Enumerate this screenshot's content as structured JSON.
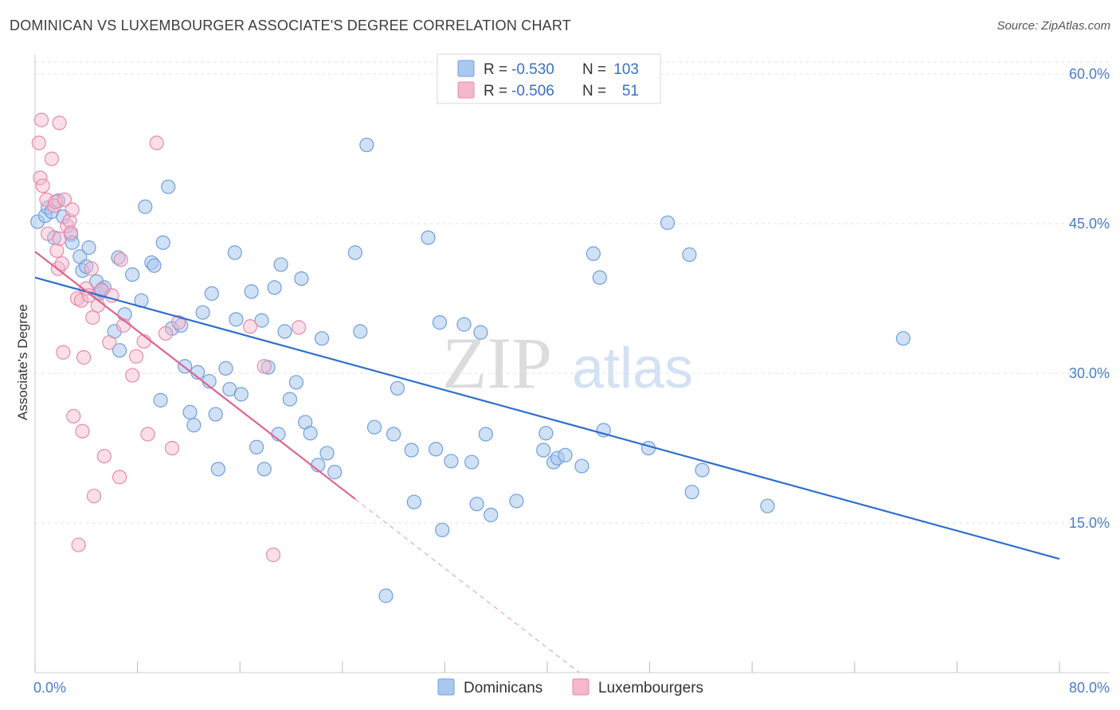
{
  "header": {
    "title": "DOMINICAN VS LUXEMBOURGER ASSOCIATE'S DEGREE CORRELATION CHART",
    "source": "Source: ZipAtlas.com"
  },
  "watermark": {
    "zip": "ZIP",
    "atlas": "atlas"
  },
  "legend_top": {
    "rows": [
      {
        "r_label": "R =",
        "r_value": "-0.530",
        "n_label": "N =",
        "n_value": "103",
        "color": "#a9c8ef"
      },
      {
        "r_label": "R =",
        "r_value": "-0.506",
        "n_label": "N =",
        "n_value": "51",
        "color": "#f5b8cb"
      }
    ]
  },
  "legend_bottom": {
    "items": [
      {
        "label": "Dominicans",
        "color": "#a9c8ef"
      },
      {
        "label": "Luxembourgers",
        "color": "#f5b8cb"
      }
    ]
  },
  "chart_data": {
    "type": "scatter",
    "xlabel": "",
    "ylabel": "Associate's Degree",
    "xlim": [
      0,
      80
    ],
    "ylim": [
      0,
      62
    ],
    "x_tick_labels": [
      {
        "value": 0,
        "label": "0.0%"
      },
      {
        "value": 80,
        "label": "80.0%"
      }
    ],
    "y_tick_labels": [
      {
        "value": 15,
        "label": "15.0%"
      },
      {
        "value": 30,
        "label": "30.0%"
      },
      {
        "value": 45,
        "label": "45.0%"
      },
      {
        "value": 60,
        "label": "60.0%"
      }
    ],
    "grid": "horizontal dashed",
    "series": [
      {
        "name": "Dominicans",
        "color": "#7aa8e4",
        "trend": {
          "x": [
            0,
            80
          ],
          "y": [
            39.6,
            11.4
          ],
          "color": "#2f6fcc"
        },
        "points": [
          [
            0.2,
            45.2
          ],
          [
            0.8,
            45.8
          ],
          [
            1.0,
            46.6
          ],
          [
            1.3,
            46.2
          ],
          [
            1.8,
            47.3
          ],
          [
            1.5,
            43.6
          ],
          [
            2.2,
            45.7
          ],
          [
            2.8,
            43.9
          ],
          [
            2.9,
            43.1
          ],
          [
            3.5,
            41.7
          ],
          [
            3.7,
            40.3
          ],
          [
            4.2,
            42.6
          ],
          [
            4.0,
            40.7
          ],
          [
            4.8,
            39.2
          ],
          [
            5.0,
            38.0
          ],
          [
            5.4,
            38.6
          ],
          [
            6.5,
            41.6
          ],
          [
            6.2,
            34.2
          ],
          [
            6.6,
            32.3
          ],
          [
            7.0,
            35.9
          ],
          [
            7.6,
            39.9
          ],
          [
            8.3,
            37.3
          ],
          [
            8.6,
            46.7
          ],
          [
            9.1,
            41.1
          ],
          [
            9.3,
            40.8
          ],
          [
            10.0,
            43.1
          ],
          [
            10.4,
            48.7
          ],
          [
            9.8,
            27.3
          ],
          [
            10.7,
            34.5
          ],
          [
            11.4,
            34.8
          ],
          [
            11.7,
            30.7
          ],
          [
            12.1,
            26.1
          ],
          [
            12.4,
            24.8
          ],
          [
            12.7,
            30.1
          ],
          [
            13.1,
            36.1
          ],
          [
            13.6,
            29.2
          ],
          [
            13.8,
            38.0
          ],
          [
            14.1,
            25.9
          ],
          [
            14.3,
            20.4
          ],
          [
            14.9,
            30.5
          ],
          [
            15.2,
            28.4
          ],
          [
            15.6,
            42.1
          ],
          [
            15.7,
            35.4
          ],
          [
            16.1,
            27.9
          ],
          [
            16.9,
            38.2
          ],
          [
            17.3,
            22.6
          ],
          [
            17.7,
            35.3
          ],
          [
            17.9,
            20.4
          ],
          [
            18.2,
            30.6
          ],
          [
            18.7,
            38.6
          ],
          [
            19.0,
            23.9
          ],
          [
            19.2,
            40.9
          ],
          [
            19.5,
            34.2
          ],
          [
            19.9,
            27.4
          ],
          [
            20.4,
            29.1
          ],
          [
            20.8,
            39.5
          ],
          [
            21.1,
            25.1
          ],
          [
            21.5,
            24.0
          ],
          [
            22.1,
            20.8
          ],
          [
            22.4,
            33.5
          ],
          [
            22.8,
            22.0
          ],
          [
            23.4,
            20.1
          ],
          [
            25.0,
            42.1
          ],
          [
            25.4,
            34.2
          ],
          [
            25.9,
            52.9
          ],
          [
            26.5,
            24.6
          ],
          [
            27.4,
            7.7
          ],
          [
            28.0,
            23.9
          ],
          [
            28.3,
            28.5
          ],
          [
            29.4,
            22.3
          ],
          [
            29.6,
            17.1
          ],
          [
            30.7,
            43.6
          ],
          [
            31.3,
            22.4
          ],
          [
            31.6,
            35.1
          ],
          [
            31.8,
            14.3
          ],
          [
            32.5,
            21.2
          ],
          [
            33.5,
            34.9
          ],
          [
            34.1,
            21.1
          ],
          [
            34.5,
            16.9
          ],
          [
            34.8,
            34.1
          ],
          [
            35.2,
            23.9
          ],
          [
            35.6,
            15.8
          ],
          [
            37.6,
            17.2
          ],
          [
            39.7,
            22.3
          ],
          [
            39.9,
            24.0
          ],
          [
            40.5,
            21.1
          ],
          [
            40.8,
            21.5
          ],
          [
            41.4,
            21.8
          ],
          [
            42.7,
            20.7
          ],
          [
            43.6,
            42.0
          ],
          [
            44.1,
            39.6
          ],
          [
            44.4,
            24.3
          ],
          [
            47.9,
            22.5
          ],
          [
            49.4,
            45.1
          ],
          [
            51.1,
            41.9
          ],
          [
            51.3,
            18.1
          ],
          [
            52.1,
            20.3
          ],
          [
            57.2,
            16.7
          ],
          [
            67.8,
            33.5
          ],
          [
            5.2,
            38.3
          ]
        ]
      },
      {
        "name": "Luxembourgers",
        "color": "#f5a5bf",
        "trend": {
          "x": [
            0,
            25
          ],
          "y": [
            42.2,
            17.4
          ],
          "color": "#e0648f"
        },
        "trend_extension": {
          "x": [
            25,
            42.5
          ],
          "y": [
            17.4,
            0.0
          ]
        },
        "points": [
          [
            0.3,
            53.1
          ],
          [
            0.5,
            55.4
          ],
          [
            0.4,
            49.6
          ],
          [
            0.6,
            48.8
          ],
          [
            0.9,
            47.4
          ],
          [
            1.0,
            44.0
          ],
          [
            1.3,
            51.5
          ],
          [
            1.5,
            46.8
          ],
          [
            1.6,
            47.2
          ],
          [
            1.7,
            42.3
          ],
          [
            1.8,
            40.5
          ],
          [
            1.9,
            43.5
          ],
          [
            2.1,
            41.0
          ],
          [
            2.3,
            47.4
          ],
          [
            2.5,
            44.8
          ],
          [
            2.7,
            45.3
          ],
          [
            2.8,
            44.1
          ],
          [
            1.9,
            55.1
          ],
          [
            2.2,
            32.1
          ],
          [
            2.9,
            46.4
          ],
          [
            3.0,
            25.7
          ],
          [
            3.3,
            37.5
          ],
          [
            3.4,
            12.8
          ],
          [
            3.6,
            37.3
          ],
          [
            3.7,
            24.2
          ],
          [
            3.8,
            31.6
          ],
          [
            4.0,
            38.5
          ],
          [
            4.2,
            37.8
          ],
          [
            4.4,
            40.5
          ],
          [
            4.5,
            35.6
          ],
          [
            4.6,
            17.7
          ],
          [
            4.9,
            36.8
          ],
          [
            5.2,
            38.4
          ],
          [
            5.4,
            21.7
          ],
          [
            5.8,
            33.1
          ],
          [
            6.0,
            37.8
          ],
          [
            6.6,
            19.6
          ],
          [
            6.7,
            41.4
          ],
          [
            6.9,
            34.8
          ],
          [
            7.6,
            29.8
          ],
          [
            7.9,
            31.7
          ],
          [
            8.5,
            33.2
          ],
          [
            8.8,
            23.9
          ],
          [
            9.5,
            53.1
          ],
          [
            10.2,
            34.0
          ],
          [
            10.7,
            22.5
          ],
          [
            11.2,
            35.1
          ],
          [
            16.8,
            34.7
          ],
          [
            17.9,
            30.7
          ],
          [
            18.6,
            11.8
          ],
          [
            20.6,
            34.6
          ]
        ]
      }
    ]
  }
}
